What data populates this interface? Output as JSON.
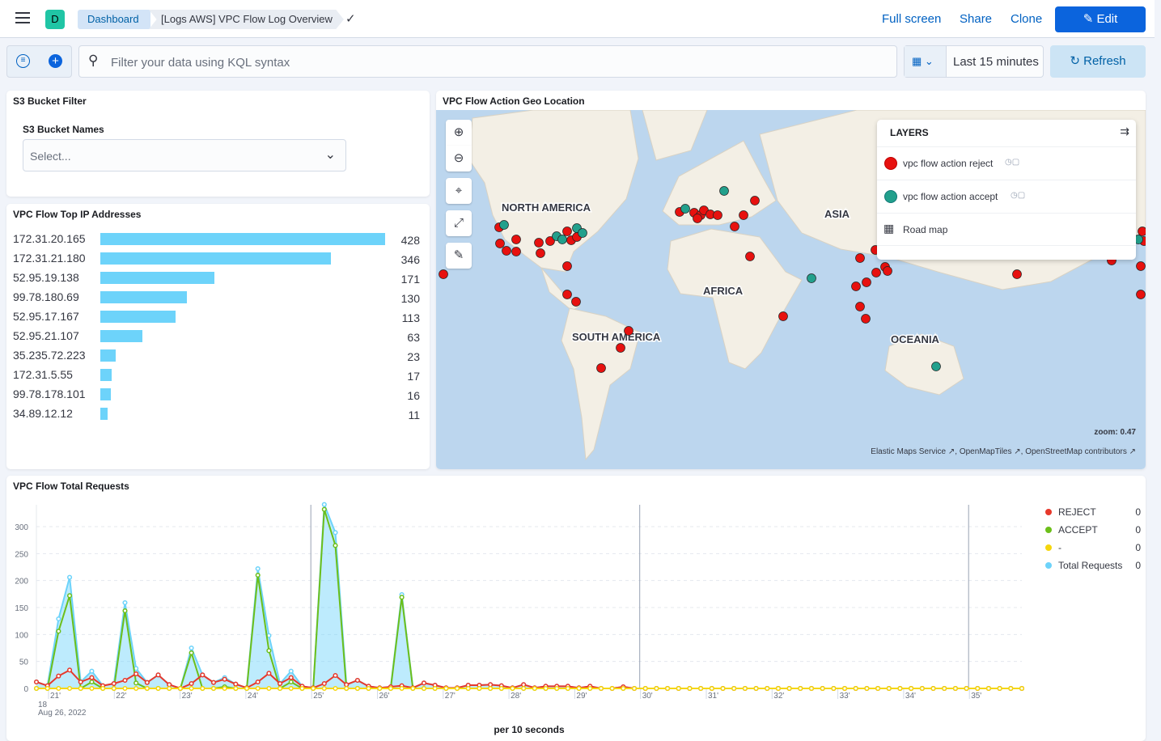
{
  "header": {
    "logo_letter": "D",
    "breadcrumbs": [
      "Dashboard",
      "[Logs AWS] VPC Flow Log Overview"
    ],
    "actions": [
      "Full screen",
      "Share",
      "Clone"
    ],
    "edit_label": "Edit"
  },
  "query": {
    "placeholder": "Filter your data using KQL syntax",
    "time_range": "Last 15 minutes",
    "refresh_label": "Refresh"
  },
  "s3_panel": {
    "title": "S3 Bucket Filter",
    "field_label": "S3 Bucket Names",
    "select_placeholder": "Select..."
  },
  "top_ip_panel": {
    "title": "VPC Flow Top IP Addresses",
    "rows": [
      {
        "ip": "172.31.20.165",
        "count": 428
      },
      {
        "ip": "172.31.21.180",
        "count": 346
      },
      {
        "ip": "52.95.19.138",
        "count": 171
      },
      {
        "ip": "99.78.180.69",
        "count": 130
      },
      {
        "ip": "52.95.17.167",
        "count": 113
      },
      {
        "ip": "52.95.21.107",
        "count": 63
      },
      {
        "ip": "35.235.72.223",
        "count": 23
      },
      {
        "ip": "172.31.5.55",
        "count": 17
      },
      {
        "ip": "99.78.178.101",
        "count": 16
      },
      {
        "ip": "34.89.12.12",
        "count": 11
      }
    ],
    "bar_color": "#6dd3fa"
  },
  "map_panel": {
    "title": "VPC Flow Action Geo Location",
    "continents": [
      "NORTH AMERICA",
      "SOUTH AMERICA",
      "AFRICA",
      "ASIA",
      "OCEANIA"
    ],
    "layers_title": "LAYERS",
    "layers": [
      {
        "name": "vpc flow action reject",
        "color": "#e7110f"
      },
      {
        "name": "vpc flow action accept",
        "color": "#22a08c"
      },
      {
        "name": "Road map",
        "icon": "grid-icon"
      }
    ],
    "zoom_text": "zoom: 0.47",
    "attribution": [
      "Elastic Maps Service",
      "OpenMapTiles",
      "OpenStreetMap contributors"
    ]
  },
  "requests_panel": {
    "title": "VPC Flow Total Requests"
  },
  "chart_data": {
    "type": "line",
    "title": "VPC Flow Total Requests",
    "xlabel": "per 10 seconds",
    "x_axis_date": "18\nAug 26, 2022",
    "ylim": [
      0,
      340
    ],
    "yticks": [
      0,
      50,
      100,
      150,
      200,
      250,
      300
    ],
    "xticks": [
      "21'",
      "22'",
      "23'",
      "24'",
      "25'",
      "26'",
      "27'",
      "28'",
      "29'",
      "30'",
      "31'",
      "32'",
      "33'",
      "34'",
      "35'"
    ],
    "grid": true,
    "legend_position": "right",
    "x_start": "18:20:50",
    "interval_seconds": 10,
    "series": [
      {
        "name": "REJECT",
        "color": "#e7382b",
        "legend_value": 0,
        "area": false,
        "values": [
          12,
          5,
          23,
          34,
          12,
          20,
          5,
          9,
          15,
          27,
          11,
          25,
          7,
          0,
          9,
          25,
          11,
          17,
          8,
          1,
          12,
          28,
          9,
          20,
          4,
          1,
          9,
          24,
          7,
          15,
          4,
          1,
          3,
          5,
          1,
          10,
          6,
          1,
          1,
          6,
          6,
          7,
          5,
          1,
          7,
          1,
          4,
          4,
          4,
          1,
          4,
          0,
          0,
          3,
          0,
          0,
          0,
          0,
          0,
          0,
          0,
          0,
          0,
          0,
          0,
          0,
          0,
          0,
          0,
          0,
          0,
          0,
          0,
          0,
          0,
          0,
          0,
          0,
          0,
          0,
          0,
          0,
          0,
          0,
          0,
          0,
          0,
          0,
          0,
          0
        ]
      },
      {
        "name": "ACCEPT",
        "color": "#6cbf1a",
        "legend_value": 0,
        "area": false,
        "values": [
          0,
          0,
          106,
          172,
          0,
          12,
          0,
          0,
          144,
          10,
          0,
          0,
          0,
          0,
          66,
          0,
          0,
          3,
          0,
          0,
          210,
          70,
          0,
          12,
          0,
          0,
          332,
          265,
          0,
          0,
          0,
          0,
          0,
          169,
          0,
          0,
          0,
          0,
          0,
          0,
          0,
          0,
          0,
          0,
          0,
          0,
          0,
          0,
          0,
          0,
          0,
          0,
          0,
          0,
          0,
          0,
          0,
          0,
          0,
          0,
          0,
          0,
          0,
          0,
          0,
          0,
          0,
          0,
          0,
          0,
          0,
          0,
          0,
          0,
          0,
          0,
          0,
          0,
          0,
          0,
          0,
          0,
          0,
          0,
          0,
          0,
          0,
          0,
          0,
          0
        ]
      },
      {
        "name": "-",
        "color": "#f5d60d",
        "legend_value": 0,
        "area": false,
        "values": [
          0,
          0,
          0,
          0,
          0,
          0,
          0,
          0,
          0,
          0,
          0,
          0,
          0,
          0,
          0,
          0,
          0,
          0,
          0,
          0,
          0,
          0,
          0,
          0,
          0,
          0,
          0,
          0,
          0,
          0,
          0,
          0,
          0,
          0,
          0,
          0,
          0,
          0,
          0,
          0,
          0,
          0,
          0,
          0,
          0,
          0,
          0,
          0,
          0,
          0,
          0,
          0,
          0,
          0,
          0,
          0,
          0,
          0,
          0,
          0,
          0,
          0,
          0,
          0,
          0,
          0,
          0,
          0,
          0,
          0,
          0,
          0,
          0,
          0,
          0,
          0,
          0,
          0,
          0,
          0,
          0,
          0,
          0,
          0,
          0,
          0,
          0,
          0,
          0,
          0
        ]
      },
      {
        "name": "Total Requests",
        "color": "#6dd3fa",
        "legend_value": 0,
        "area": true,
        "values": [
          12,
          5,
          129,
          206,
          12,
          32,
          5,
          9,
          159,
          37,
          11,
          25,
          7,
          0,
          75,
          25,
          11,
          20,
          8,
          1,
          222,
          98,
          9,
          32,
          4,
          1,
          341,
          289,
          7,
          15,
          4,
          1,
          3,
          174,
          1,
          10,
          6,
          1,
          1,
          6,
          6,
          7,
          5,
          1,
          7,
          1,
          4,
          4,
          4,
          1,
          4,
          0,
          0,
          3,
          0,
          0,
          0,
          0,
          0,
          0,
          0,
          0,
          0,
          0,
          0,
          0,
          0,
          0,
          0,
          0,
          0,
          0,
          0,
          0,
          0,
          0,
          0,
          0,
          0,
          0,
          0,
          0,
          0,
          0,
          0,
          0,
          0,
          0,
          0,
          0
        ]
      }
    ]
  }
}
